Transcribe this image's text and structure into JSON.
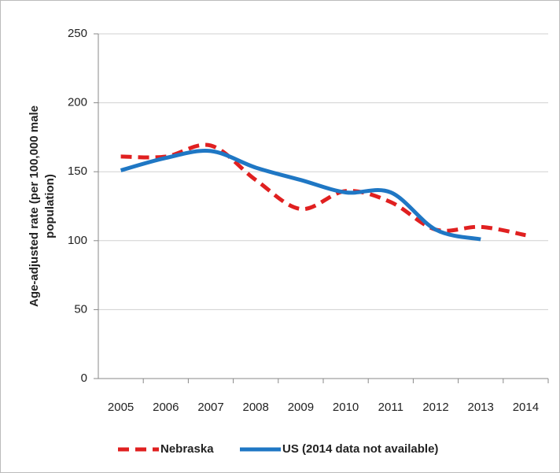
{
  "chart_data": {
    "type": "line",
    "y_label": [
      "Age-adjusted rate (per 100,000 male",
      "population)"
    ],
    "categories": [
      "2005",
      "2006",
      "2007",
      "2008",
      "2009",
      "2010",
      "2011",
      "2012",
      "2013",
      "2014"
    ],
    "series": [
      {
        "name": "Nebraska",
        "color": "#e02020",
        "dash": true,
        "values": [
          161,
          161,
          169,
          144,
          123,
          136,
          128,
          108,
          110,
          104
        ]
      },
      {
        "name": "US (2014 data not available)",
        "color": "#1f77c4",
        "dash": false,
        "values": [
          151,
          160,
          165,
          153,
          144,
          135,
          135,
          108,
          101,
          null
        ]
      }
    ],
    "ylim": [
      0,
      250
    ],
    "yticks": [
      0,
      50,
      100,
      150,
      200,
      250
    ],
    "grid": true
  }
}
